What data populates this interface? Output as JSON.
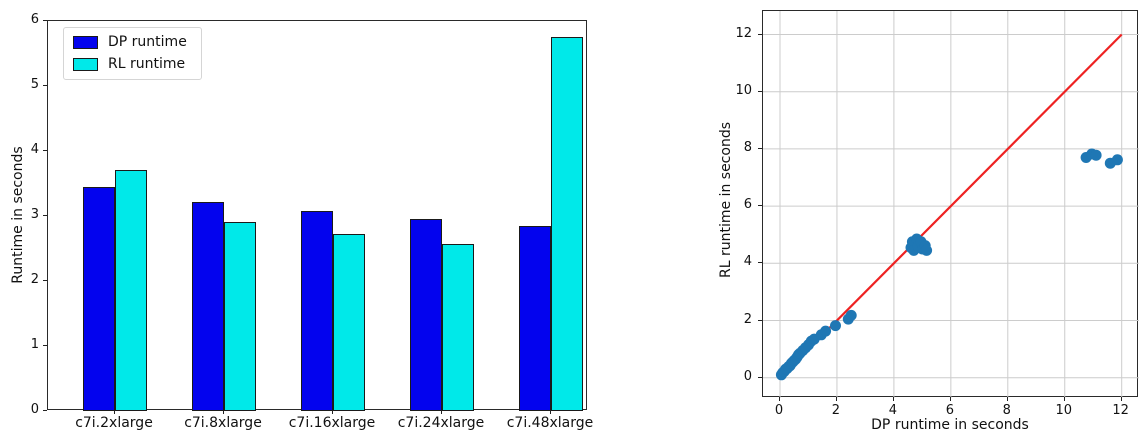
{
  "figure": {
    "background": "#ffffff"
  },
  "chart_data": [
    {
      "type": "bar",
      "title": "",
      "xlabel": "",
      "ylabel": "Runtime in seconds",
      "categories": [
        "c7i.2xlarge",
        "c7i.8xlarge",
        "c7i.16xlarge",
        "c7i.24xlarge",
        "c7i.48xlarge"
      ],
      "series": [
        {
          "name": "DP runtime",
          "color": "#0303ee",
          "values": [
            3.45,
            3.22,
            3.08,
            2.95,
            2.85
          ]
        },
        {
          "name": "RL runtime",
          "color": "#00e9e9",
          "values": [
            3.7,
            2.9,
            2.72,
            2.57,
            5.75
          ]
        }
      ],
      "bar_edge_color": "#1a1a1a",
      "ylim": [
        0,
        6
      ],
      "yticks": [
        0,
        1,
        2,
        3,
        4,
        5,
        6
      ],
      "grid": false,
      "legend_position": "upper left"
    },
    {
      "type": "scatter",
      "title": "",
      "xlabel": "DP runtime in seconds",
      "ylabel": "RL runtime in seconds",
      "xticks": [
        0,
        2,
        4,
        6,
        8,
        10,
        12
      ],
      "yticks": [
        0,
        2,
        4,
        6,
        8,
        10,
        12
      ],
      "xlim": [
        -0.6,
        12.6
      ],
      "ylim": [
        -0.7,
        12.8
      ],
      "grid": true,
      "grid_color": "#cccccc",
      "point_color": "#1f77b4",
      "reference_line": {
        "from": [
          0,
          0
        ],
        "to": [
          12,
          12
        ],
        "color": "#ee2222"
      },
      "points": [
        [
          0.05,
          0.1
        ],
        [
          0.1,
          0.18
        ],
        [
          0.15,
          0.22
        ],
        [
          0.2,
          0.3
        ],
        [
          0.25,
          0.32
        ],
        [
          0.3,
          0.38
        ],
        [
          0.35,
          0.42
        ],
        [
          0.4,
          0.5
        ],
        [
          0.45,
          0.55
        ],
        [
          0.5,
          0.6
        ],
        [
          0.55,
          0.65
        ],
        [
          0.6,
          0.72
        ],
        [
          0.65,
          0.8
        ],
        [
          0.7,
          0.85
        ],
        [
          0.8,
          0.95
        ],
        [
          0.9,
          1.05
        ],
        [
          1.0,
          1.15
        ],
        [
          1.1,
          1.28
        ],
        [
          1.2,
          1.35
        ],
        [
          1.45,
          1.5
        ],
        [
          1.6,
          1.63
        ],
        [
          1.95,
          1.82
        ],
        [
          2.4,
          2.05
        ],
        [
          2.5,
          2.18
        ],
        [
          4.6,
          4.55
        ],
        [
          4.65,
          4.75
        ],
        [
          4.7,
          4.45
        ],
        [
          4.8,
          4.85
        ],
        [
          4.85,
          4.6
        ],
        [
          4.95,
          4.75
        ],
        [
          5.0,
          4.5
        ],
        [
          5.1,
          4.62
        ],
        [
          5.15,
          4.45
        ],
        [
          10.75,
          7.7
        ],
        [
          10.95,
          7.82
        ],
        [
          11.1,
          7.78
        ],
        [
          11.6,
          7.5
        ],
        [
          11.85,
          7.62
        ]
      ]
    }
  ]
}
